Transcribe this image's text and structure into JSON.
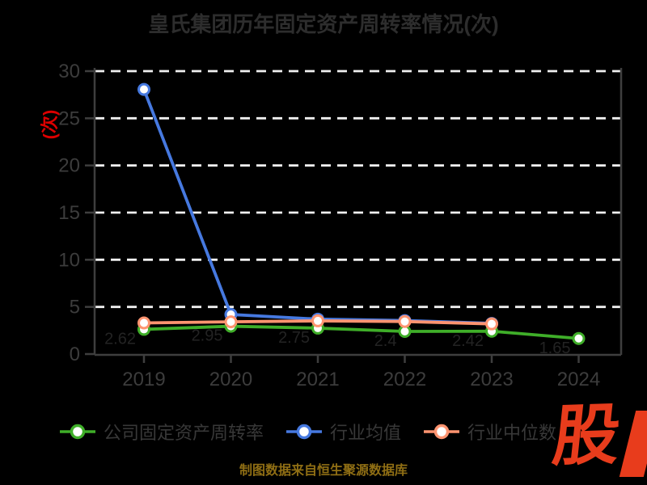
{
  "title": "皇氏集团历年固定资产周转率情况(次)",
  "y_axis_label": "(次)",
  "caption": "制图数据来自恒生聚源数据库",
  "logo_text": "股",
  "colors": {
    "background": "#000000",
    "title": "#2d2d2d",
    "tick_label": "#3c3c3c",
    "legend_text": "#383838",
    "grid": "#f0f0f0",
    "spine": "#3e3e3e",
    "series_company": "#3fae29",
    "series_industry_mean": "#4679e0",
    "series_industry_median": "#ff9470",
    "ylabel": "#dd0000",
    "caption": "#8f6e14",
    "logo": "#e83c1c",
    "point_label": "#232323",
    "marker_fill": "#ffffff"
  },
  "legend": [
    {
      "label": "公司固定资产周转率",
      "color_key": "series_company"
    },
    {
      "label": "行业均值",
      "color_key": "series_industry_mean"
    },
    {
      "label": "行业中位数",
      "color_key": "series_industry_median"
    }
  ],
  "chart_data": {
    "type": "line",
    "title": "皇氏集团历年固定资产周转率情况(次)",
    "xlabel": "",
    "ylabel": "(次)",
    "x": [
      2019,
      2020,
      2021,
      2022,
      2023,
      2024
    ],
    "x_tick_labels": [
      "2019",
      "2020",
      "2021",
      "2022",
      "2023",
      "2024"
    ],
    "series": [
      {
        "name": "公司固定资产周转率",
        "color_key": "series_company",
        "values": [
          2.62,
          2.95,
          2.75,
          2.4,
          2.42,
          1.65
        ],
        "point_labels": [
          "2.62",
          "2.95",
          "2.75",
          "2.4",
          "2.42",
          "1.65"
        ]
      },
      {
        "name": "行业均值",
        "color_key": "series_industry_mean",
        "values": [
          28.06,
          4.2,
          3.7,
          3.55,
          3.25,
          null
        ],
        "point_labels": []
      },
      {
        "name": "行业中位数",
        "color_key": "series_industry_median",
        "values": [
          3.3,
          3.42,
          3.52,
          3.45,
          3.2,
          null
        ],
        "point_labels": []
      }
    ],
    "ylim": [
      0,
      30
    ],
    "yticks": [
      0,
      5,
      10,
      15,
      20,
      25,
      30
    ],
    "grid": "horizontal-dashed-white",
    "legend_position": "bottom"
  }
}
